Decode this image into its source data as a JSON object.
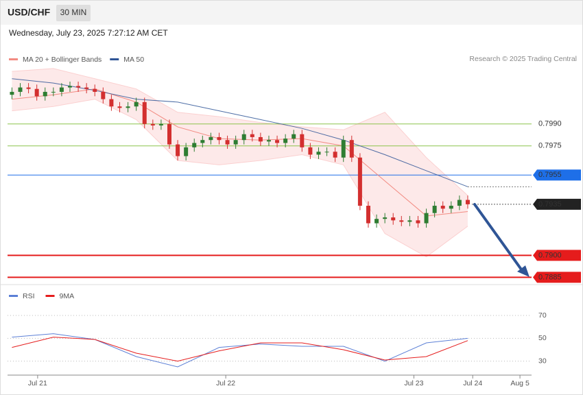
{
  "header": {
    "symbol": "USD/CHF",
    "timeframe": "30 MIN",
    "datetime": "Wednesday, July 23, 2025 7:27:12 AM CET"
  },
  "credit": "Research © 2025 Trading Central",
  "chart_data": [
    {
      "type": "candlestick",
      "legend": [
        {
          "name": "MA 20 + Bollinger Bands",
          "color": "#f28b82"
        },
        {
          "name": "MA 50",
          "color": "#2f5596"
        }
      ],
      "xlim": [
        -0.2,
        62.7
      ],
      "ylim": [
        0.788,
        0.8058
      ],
      "xticks": [
        {
          "value": 3.1,
          "label": "Jul 21"
        },
        {
          "value": 25.8,
          "label": "Jul 22"
        },
        {
          "value": 48.5,
          "label": "Jul 23"
        },
        {
          "value": 55.6,
          "label": "Jul 24"
        },
        {
          "value": 61.3,
          "label": "Aug 5"
        }
      ],
      "open": [
        0.801,
        0.8012,
        0.8015,
        0.8014,
        0.8009,
        0.8012,
        0.8012,
        0.8015,
        0.8016,
        0.8015,
        0.8014,
        0.8012,
        0.8007,
        0.8002,
        0.8001,
        0.8002,
        0.8005,
        0.799,
        0.7989,
        0.799,
        0.7976,
        0.7968,
        0.7974,
        0.7977,
        0.7979,
        0.7981,
        0.7979,
        0.7976,
        0.7979,
        0.7983,
        0.7981,
        0.7978,
        0.7979,
        0.7977,
        0.798,
        0.7983,
        0.7974,
        0.7969,
        0.7971,
        0.7971,
        0.7967,
        0.7979,
        0.7967,
        0.7934,
        0.7922,
        0.7925,
        0.7926,
        0.7924,
        0.7923,
        0.7924,
        0.7922,
        0.7929,
        0.7934,
        0.7932,
        0.7934,
        0.7938
      ],
      "high": [
        0.8015,
        0.8018,
        0.8018,
        0.8017,
        0.8015,
        0.8015,
        0.8018,
        0.8019,
        0.8019,
        0.8018,
        0.8017,
        0.8015,
        0.801,
        0.8005,
        0.8005,
        0.8008,
        0.8008,
        0.7993,
        0.7993,
        0.7993,
        0.7979,
        0.7977,
        0.798,
        0.7982,
        0.7984,
        0.7984,
        0.7982,
        0.7982,
        0.7986,
        0.7986,
        0.7984,
        0.7982,
        0.7982,
        0.7983,
        0.7986,
        0.7986,
        0.7977,
        0.7974,
        0.7974,
        0.7974,
        0.7982,
        0.7982,
        0.797,
        0.7937,
        0.7928,
        0.7929,
        0.7929,
        0.7927,
        0.7927,
        0.7927,
        0.7932,
        0.7937,
        0.7937,
        0.7937,
        0.7941,
        0.7941
      ],
      "low": [
        0.8007,
        0.8009,
        0.8011,
        0.8006,
        0.8006,
        0.8009,
        0.8009,
        0.8012,
        0.8012,
        0.8011,
        0.8009,
        0.8004,
        0.7999,
        0.7998,
        0.7998,
        0.7999,
        0.7987,
        0.7986,
        0.7986,
        0.7973,
        0.7965,
        0.7965,
        0.7971,
        0.7974,
        0.7976,
        0.7976,
        0.7973,
        0.7973,
        0.7976,
        0.7978,
        0.7975,
        0.7975,
        0.7974,
        0.7974,
        0.7977,
        0.7971,
        0.7966,
        0.7966,
        0.7968,
        0.7964,
        0.7964,
        0.7964,
        0.7931,
        0.7919,
        0.7919,
        0.7922,
        0.7921,
        0.792,
        0.792,
        0.7919,
        0.7919,
        0.7926,
        0.7929,
        0.7929,
        0.7931,
        0.7932
      ],
      "close": [
        0.8012,
        0.8015,
        0.8014,
        0.8009,
        0.8012,
        0.8012,
        0.8015,
        0.8016,
        0.8015,
        0.8014,
        0.8012,
        0.8007,
        0.8002,
        0.8001,
        0.8002,
        0.8005,
        0.799,
        0.7989,
        0.799,
        0.7976,
        0.7968,
        0.7974,
        0.7977,
        0.7979,
        0.7981,
        0.7979,
        0.7976,
        0.7979,
        0.7983,
        0.7981,
        0.7978,
        0.7979,
        0.7977,
        0.798,
        0.7983,
        0.7974,
        0.7969,
        0.7971,
        0.7971,
        0.7967,
        0.7979,
        0.7967,
        0.7934,
        0.7922,
        0.7925,
        0.7926,
        0.7924,
        0.7923,
        0.7924,
        0.7922,
        0.7929,
        0.7934,
        0.7932,
        0.7934,
        0.7938,
        0.7935
      ],
      "up_color": "#2e7d32",
      "down_color": "#d32f2f",
      "ma_x": [
        0,
        5,
        10,
        15,
        20,
        25,
        30,
        35,
        40,
        45,
        50,
        55
      ],
      "ma20": [
        0.8007,
        0.801,
        0.8014,
        0.8005,
        0.7988,
        0.798,
        0.7979,
        0.798,
        0.7975,
        0.7951,
        0.7927,
        0.793
      ],
      "ma50": [
        0.8021,
        0.8018,
        0.8013,
        0.8007,
        0.8005,
        0.7999,
        0.7993,
        0.7987,
        0.7979,
        0.7969,
        0.7958,
        0.7947
      ],
      "bb_upper": [
        0.8026,
        0.8028,
        0.8021,
        0.8014,
        0.7998,
        0.7995,
        0.7991,
        0.7988,
        0.7986,
        0.7998,
        0.7967,
        0.7941
      ],
      "bb_lower": [
        0.7999,
        0.8002,
        0.8007,
        0.7993,
        0.7965,
        0.7962,
        0.7965,
        0.7969,
        0.7962,
        0.7915,
        0.7899,
        0.792
      ],
      "levels": [
        {
          "value": 0.799,
          "label": "0.7990",
          "color": "#8bc34a",
          "text_color": "#4a8a1c",
          "boxed": false
        },
        {
          "value": 0.7975,
          "label": "0.7975",
          "color": "#8bc34a",
          "text_color": "#4a8a1c",
          "boxed": false
        },
        {
          "value": 0.7955,
          "label": "0.7955",
          "color": "#1e6fe8",
          "text_color": "#ffffff",
          "boxed": true
        },
        {
          "value": 0.7935,
          "label": "0.7935",
          "color": "#222222",
          "text_color": "#ffffff",
          "boxed": true,
          "current": true
        },
        {
          "value": 0.79,
          "label": "0.7900",
          "color": "#e51c1c",
          "text_color": "#ffffff",
          "boxed": true
        },
        {
          "value": 0.7885,
          "label": "0.7885",
          "color": "#e51c1c",
          "text_color": "#ffffff",
          "boxed": true
        }
      ]
    },
    {
      "type": "line",
      "ylim": [
        19,
        79
      ],
      "yticks": [
        30,
        50,
        70
      ],
      "x": [
        0,
        5,
        10,
        15,
        20,
        25,
        30,
        35,
        40,
        45,
        50,
        55
      ],
      "series": [
        {
          "name": "RSI",
          "color": "#5b7fd6",
          "values": [
            51,
            54,
            49,
            34,
            25,
            42,
            45,
            43,
            43,
            30,
            46,
            50
          ]
        },
        {
          "name": "9MA",
          "color": "#e51c1c",
          "values": [
            42,
            51,
            49,
            37,
            30,
            39,
            46,
            46,
            40,
            31,
            34,
            48
          ]
        }
      ]
    }
  ]
}
